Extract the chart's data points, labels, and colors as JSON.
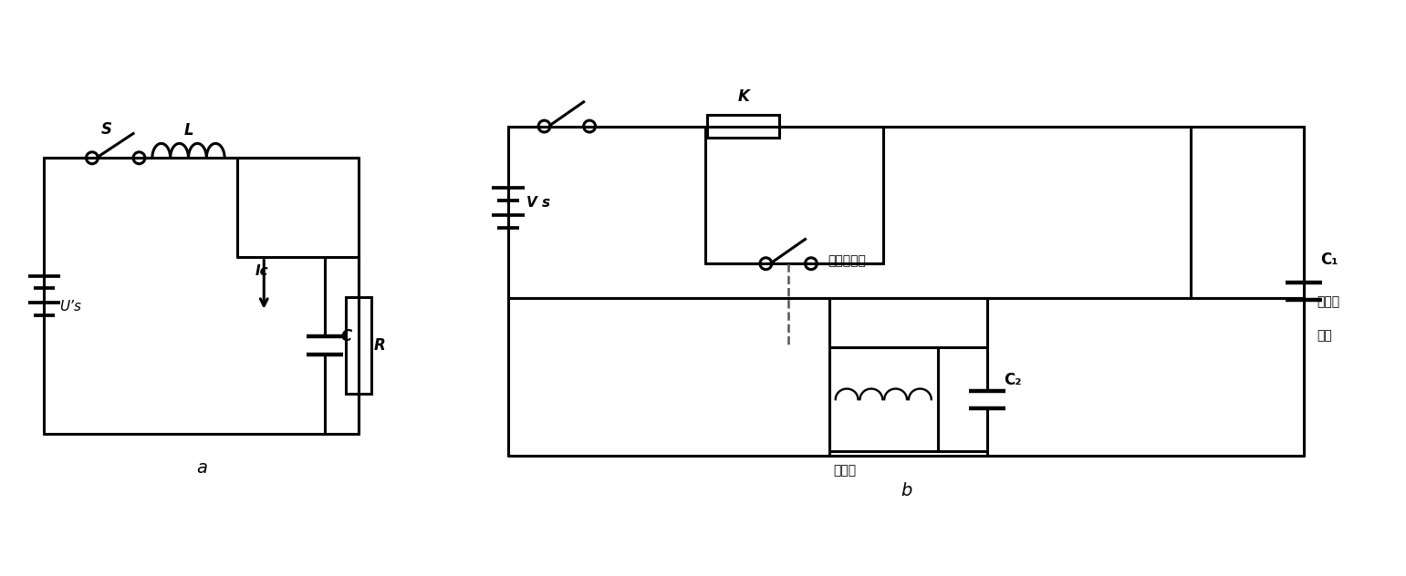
{
  "fig_width": 15.41,
  "fig_height": 6.32,
  "background_color": "#ffffff",
  "label_a": "a",
  "label_b": "b",
  "label_S": "S",
  "label_L": "L",
  "label_Us": "U’s",
  "label_Ic": "Ic",
  "label_C": "C",
  "label_R": "R",
  "label_K": "K",
  "label_Vs": "V s",
  "label_relay_contact": "继电器触点",
  "label_relay": "继电器",
  "label_C1": "C₁",
  "label_C2": "C₂",
  "label_cap_load1": "电容作",
  "label_cap_load2": "负数",
  "line_color": "#000000",
  "line_width": 2.2
}
